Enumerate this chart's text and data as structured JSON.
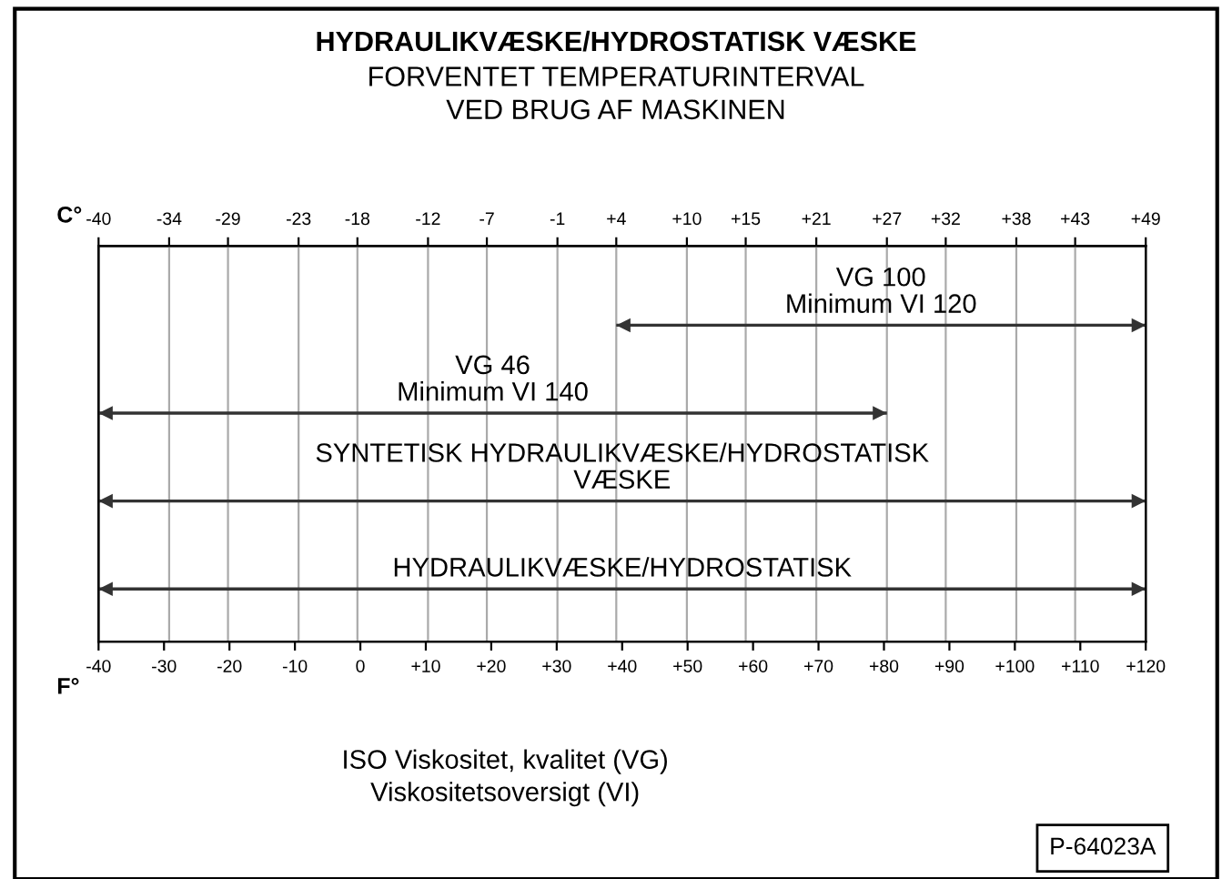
{
  "chart_data": {
    "type": "bar",
    "orientation": "horizontal",
    "title": "HYDRAULIKVÆSKE/HYDROSTATISK VÆSKE",
    "subtitle": "FORVENTET TEMPERATURINTERVAL\nVED BRUG AF MASKINEN",
    "categories": [
      "VG 100\nMinimum VI 120",
      "VG 46\nMinimum VI 140",
      "SYNTETISK HYDRAULIKVÆSKE/HYDROSTATISK\nVÆSKE",
      "HYDRAULIKVÆSKE/HYDROSTATISK"
    ],
    "series": [
      {
        "axis": "x2",
        "color": "#333333",
        "base": [
          4,
          -40,
          -40,
          -40
        ],
        "values": [
          45,
          67,
          89,
          89
        ]
      }
    ],
    "xlabel": "F°",
    "x2label": "C°",
    "xlim": [
      -40,
      120
    ],
    "xticks": [
      {
        "value": -40,
        "label": "-40"
      },
      {
        "value": -30,
        "label": "-30"
      },
      {
        "value": -20,
        "label": "-20"
      },
      {
        "value": -10,
        "label": "-10"
      },
      0,
      {
        "value": 10,
        "label": "+10"
      },
      {
        "value": 20,
        "label": "+20"
      },
      {
        "value": 30,
        "label": "+30"
      },
      {
        "value": 40,
        "label": "+40"
      },
      {
        "value": 50,
        "label": "+50"
      },
      {
        "value": 60,
        "label": "+60"
      },
      {
        "value": 70,
        "label": "+70"
      },
      {
        "value": 80,
        "label": "+80"
      },
      {
        "value": 90,
        "label": "+90"
      },
      {
        "value": 100,
        "label": "+100"
      },
      {
        "value": 110,
        "label": "+110"
      },
      {
        "value": 120,
        "label": "+120"
      }
    ],
    "x2lim": [
      -40,
      49
    ],
    "x2ticks": [
      {
        "value": -40,
        "label": "-40"
      },
      {
        "value": -34,
        "label": "-34"
      },
      {
        "value": -29,
        "label": "-29"
      },
      {
        "value": -23,
        "label": "-23"
      },
      {
        "value": -18,
        "label": "-18"
      },
      {
        "value": -12,
        "label": "-12"
      },
      {
        "value": -7,
        "label": "-7"
      },
      {
        "value": -1,
        "label": "-1"
      },
      {
        "value": 4,
        "label": "+4"
      },
      {
        "value": 10,
        "label": "+10"
      },
      {
        "value": 15,
        "label": "+15"
      },
      {
        "value": 21,
        "label": "+21"
      },
      {
        "value": 27,
        "label": "+27"
      },
      {
        "value": 32,
        "label": "+32"
      },
      {
        "value": 38,
        "label": "+38"
      },
      {
        "value": 43,
        "label": "+43"
      },
      {
        "value": 49,
        "label": "+49"
      }
    ],
    "grid": "x",
    "annotations": [
      "ISO Viskositet, kvalitet (VG)\nViskositetsoversigt (VI)",
      "P-64023A"
    ]
  }
}
